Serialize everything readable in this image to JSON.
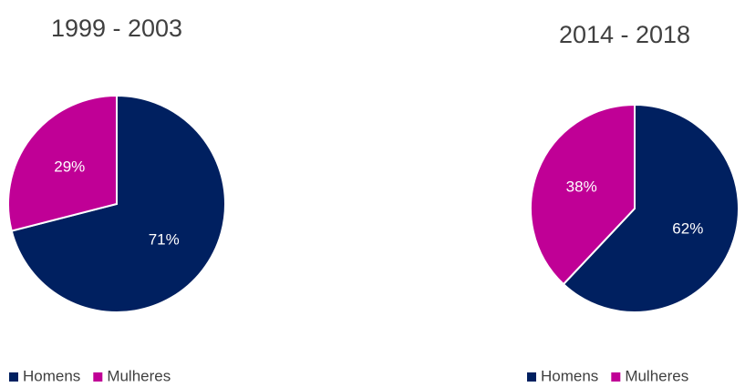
{
  "chart_data": [
    {
      "type": "pie",
      "title": "1999 - 2003",
      "categories": [
        "Homens",
        "Mulheres"
      ],
      "values": [
        71,
        29
      ],
      "value_labels": [
        "71%",
        "29%"
      ],
      "colors": [
        "#002060",
        "#c00096"
      ],
      "legend": "bottom"
    },
    {
      "type": "pie",
      "title": "2014 - 2018",
      "categories": [
        "Homens",
        "Mulheres"
      ],
      "values": [
        62,
        38
      ],
      "value_labels": [
        "62%",
        "38%"
      ],
      "colors": [
        "#002060",
        "#c00096"
      ],
      "legend": "bottom"
    }
  ]
}
